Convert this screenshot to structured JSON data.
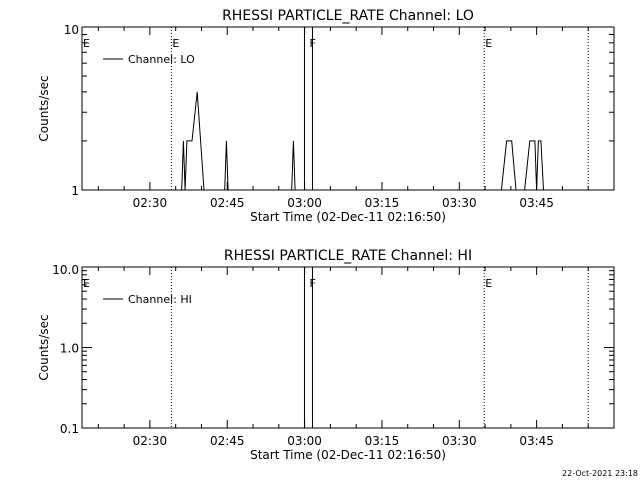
{
  "footer": {
    "timestamp": "22-Oct-2021 23:18"
  },
  "chart_data": [
    {
      "type": "line",
      "title": "RHESSI PARTICLE_RATE Channel: LO",
      "xlabel": "Start Time (02-Dec-11 02:16:50)",
      "ylabel": "Counts/sec",
      "y_scale": "log",
      "ylim": [
        1,
        10
      ],
      "y_ticks": [
        {
          "value": 1,
          "label": "1"
        },
        {
          "value": 10,
          "label": "10"
        }
      ],
      "xlim": [
        "02:16:50",
        "04:00:00"
      ],
      "x_ticks": [
        "02:30",
        "02:45",
        "03:00",
        "03:15",
        "03:30",
        "03:45"
      ],
      "legend": {
        "label": "Channel: LO",
        "position": "top-left"
      },
      "markers": [
        {
          "time": "02:34:10",
          "label": "E",
          "style": "dotted"
        },
        {
          "time": "02:16:50",
          "label": "E",
          "style": "none"
        },
        {
          "time": "03:00:45",
          "label": "F",
          "style": "solid-pair"
        },
        {
          "time": "03:34:50",
          "label": "E",
          "style": "dotted"
        },
        {
          "time": "03:55:00",
          "label": "",
          "style": "dotted"
        }
      ],
      "series": [
        {
          "name": "Channel: LO",
          "points": [
            [
              "02:36:10",
              1
            ],
            [
              "02:36:30",
              2
            ],
            [
              "02:36:50",
              1
            ],
            [
              "02:37:10",
              2
            ],
            [
              "02:38:10",
              2
            ],
            [
              "02:39:10",
              4
            ],
            [
              "02:40:30",
              1
            ],
            [
              "02:44:30",
              1
            ],
            [
              "02:44:50",
              2
            ],
            [
              "02:45:10",
              1
            ],
            [
              "02:57:30",
              1
            ],
            [
              "02:57:50",
              2
            ],
            [
              "02:58:10",
              1
            ],
            [
              "03:38:10",
              1
            ],
            [
              "03:39:10",
              2
            ],
            [
              "03:40:10",
              2
            ],
            [
              "03:41:00",
              1
            ],
            [
              "03:42:40",
              1
            ],
            [
              "03:43:40",
              2
            ],
            [
              "03:44:40",
              2
            ],
            [
              "03:45:00",
              1
            ],
            [
              "03:45:20",
              2
            ],
            [
              "03:45:50",
              2
            ],
            [
              "03:46:20",
              1
            ]
          ]
        }
      ]
    },
    {
      "type": "line",
      "title": "RHESSI PARTICLE_RATE Channel: HI",
      "xlabel": "Start Time (02-Dec-11 02:16:50)",
      "ylabel": "Counts/sec",
      "y_scale": "log",
      "ylim": [
        0.1,
        10
      ],
      "y_ticks": [
        {
          "value": 0.1,
          "label": "0.1"
        },
        {
          "value": 1,
          "label": "1.0"
        },
        {
          "value": 10,
          "label": "10.0"
        }
      ],
      "xlim": [
        "02:16:50",
        "04:00:00"
      ],
      "x_ticks": [
        "02:30",
        "02:45",
        "03:00",
        "03:15",
        "03:30",
        "03:45"
      ],
      "legend": {
        "label": "Channel: HI",
        "position": "top-left"
      },
      "markers": [
        {
          "time": "02:34:10",
          "label": "",
          "style": "dotted"
        },
        {
          "time": "02:16:50",
          "label": "E",
          "style": "none"
        },
        {
          "time": "03:00:45",
          "label": "F",
          "style": "solid-pair"
        },
        {
          "time": "03:34:50",
          "label": "E",
          "style": "dotted"
        },
        {
          "time": "03:55:00",
          "label": "",
          "style": "dotted"
        }
      ],
      "series": [
        {
          "name": "Channel: HI",
          "points": []
        }
      ]
    }
  ]
}
